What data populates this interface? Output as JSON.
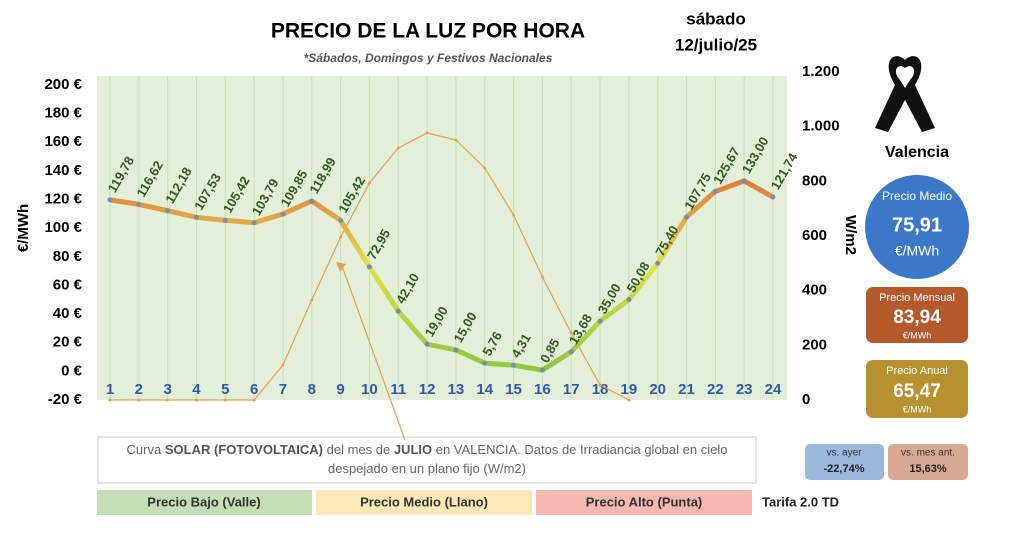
{
  "chart_data": {
    "type": "line",
    "title": "PRECIO DE LA LUZ POR HORA",
    "subtitle": "*Sábados, Domingos y Festivos Nacionales",
    "categories": [
      "1",
      "2",
      "3",
      "4",
      "5",
      "6",
      "7",
      "8",
      "9",
      "10",
      "11",
      "12",
      "13",
      "14",
      "15",
      "16",
      "17",
      "18",
      "19",
      "20",
      "21",
      "22",
      "23",
      "24"
    ],
    "series": [
      {
        "name": "Precio",
        "color": "#7a8fa6",
        "axis": "y",
        "values": [
          119.78,
          116.62,
          112.18,
          107.53,
          105.42,
          103.79,
          109.85,
          118.99,
          105.42,
          72.95,
          42.1,
          19.0,
          15.0,
          5.76,
          4.31,
          0.85,
          13.68,
          35.0,
          50.08,
          75.4,
          107.75,
          125.67,
          133.0,
          121.74
        ],
        "value_labels": [
          "119,78",
          "116,62",
          "112,18",
          "107,53",
          "105,42",
          "103,79",
          "109,85",
          "118,99",
          "105,42",
          "72,95",
          "42,10",
          "19,00",
          "15,00",
          "5,76",
          "4,31",
          "0,85",
          "13,68",
          "35,00",
          "50,08",
          "75,40",
          "107,75",
          "125,67",
          "133,00",
          "121,74"
        ]
      },
      {
        "name": "Solar",
        "color": "#e8a04a",
        "axis": "y2",
        "values": [
          0,
          0,
          0,
          0,
          0,
          0,
          128,
          366,
          596,
          794,
          922,
          977,
          951,
          849,
          677,
          450,
          245,
          55,
          0,
          null,
          null,
          null,
          null,
          null
        ]
      }
    ],
    "ylabel": "€/MWh",
    "y2label": "W/m2",
    "ylim": [
      -20,
      200
    ],
    "yticks": [
      {
        "value": -20,
        "label": "-20 €"
      },
      {
        "value": 0,
        "label": "0 €"
      },
      {
        "value": 20,
        "label": "20 €"
      },
      {
        "value": 40,
        "label": "40 €"
      },
      {
        "value": 60,
        "label": "60 €"
      },
      {
        "value": 80,
        "label": "80 €"
      },
      {
        "value": 100,
        "label": "100 €"
      },
      {
        "value": 120,
        "label": "120 €"
      },
      {
        "value": 140,
        "label": "140 €"
      },
      {
        "value": 160,
        "label": "160 €"
      },
      {
        "value": 180,
        "label": "180 €"
      },
      {
        "value": 200,
        "label": "200 €"
      }
    ],
    "y2lim": [
      0,
      1200
    ],
    "y2ticks": [
      0,
      200,
      400,
      600,
      800,
      {
        "value": 1000,
        "label": "1.000"
      },
      {
        "value": 1200,
        "label": "1.200"
      }
    ],
    "grid": true,
    "note": [
      {
        "text": "Curva ",
        "bold": false
      },
      {
        "text": "SOLAR (FOTOVOLTAICA)",
        "bold": true
      },
      {
        "text": " del mes de ",
        "bold": false
      },
      {
        "text": "JULIO",
        "bold": true
      },
      {
        "text": " en VALENCIA. Datos de Irradiancia global en cielo despejado en un plano fijo (W/m2)",
        "bold": false
      }
    ]
  },
  "header": {
    "day": "sábado",
    "date": "12/julio/25"
  },
  "panel": {
    "city": "Valencia",
    "avg_label": "Precio Medio",
    "avg": "75,91",
    "avg_unit": "€/MWh",
    "month_label": "Precio Mensual",
    "month": "83,94",
    "month_unit": "€/MWh",
    "year_label": "Precio Anual",
    "year": "65,47",
    "year_unit": "€/MWh",
    "vs_day_label": "vs. ayer",
    "vs_day": "-22,74%",
    "vs_month_label": "vs. mes ant.",
    "vs_month": "15,63%"
  },
  "legend": {
    "low": "Precio Bajo (Valle)",
    "mid": "Precio Medio (Llano)",
    "high": "Precio Alto (Punta)",
    "tariff": "Tarifa 2.0 TD"
  }
}
